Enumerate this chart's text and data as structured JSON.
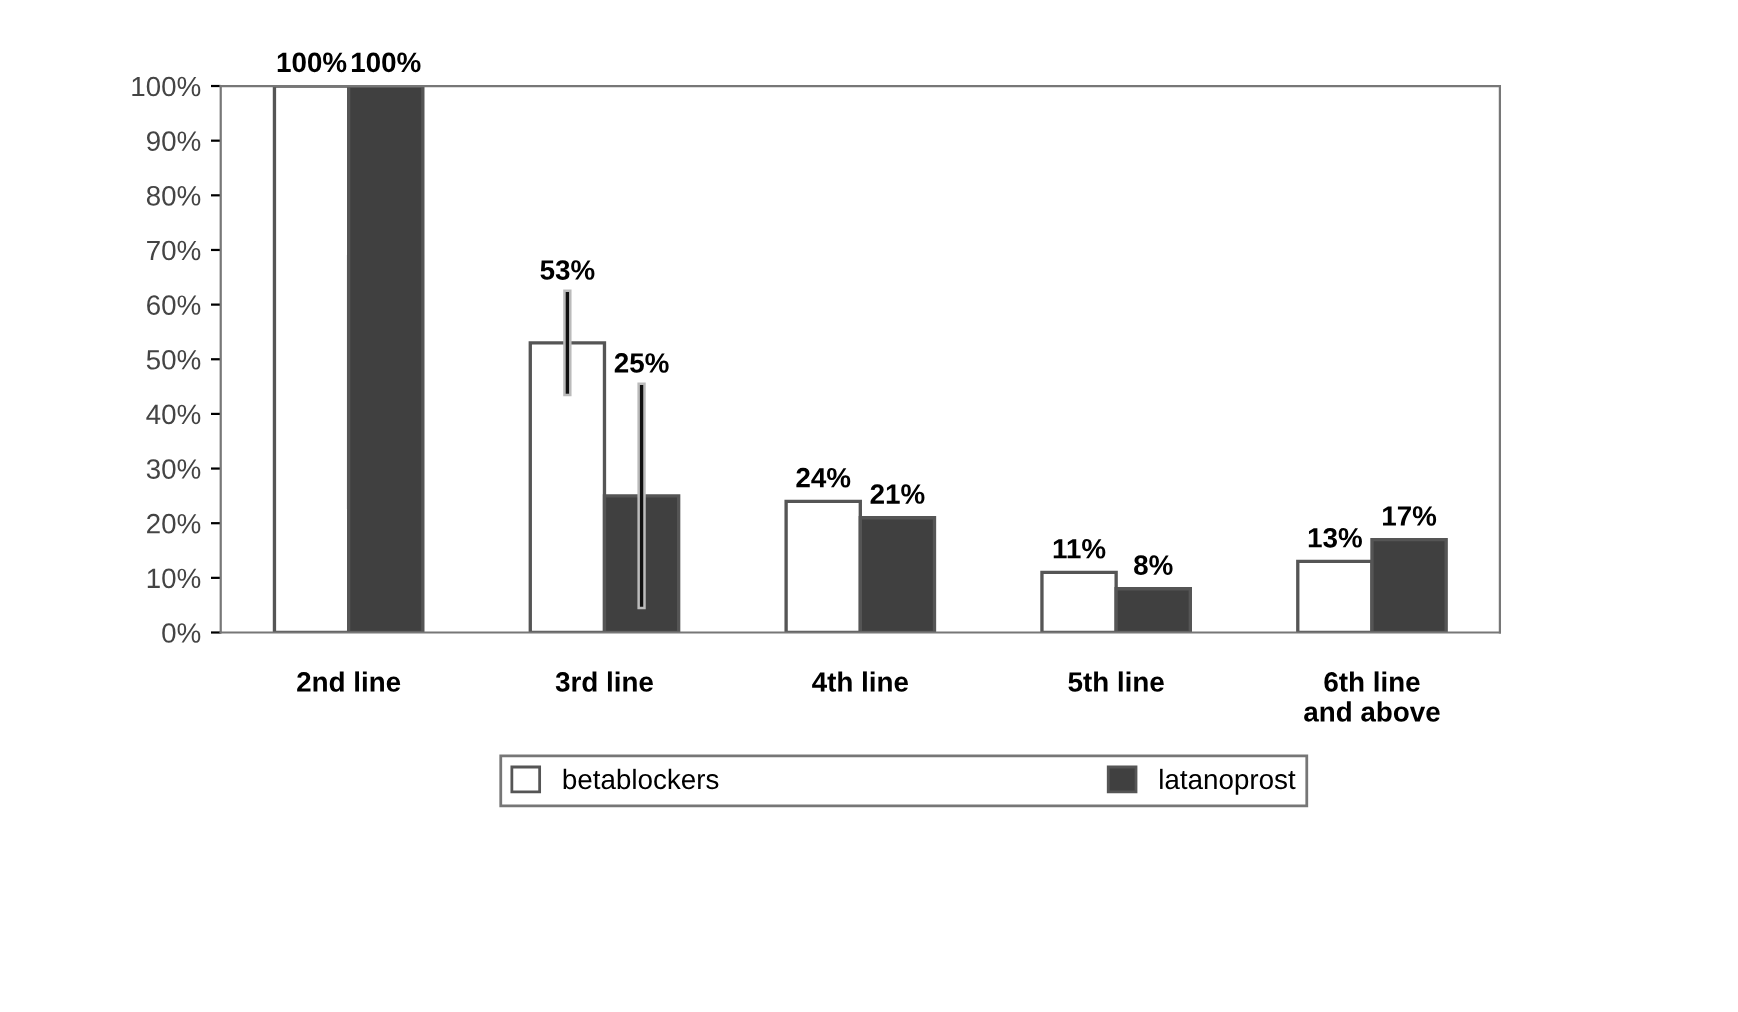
{
  "chart_data": {
    "type": "bar",
    "categories": [
      "2nd line",
      "3rd line",
      "4th line",
      "5th line",
      "6th line\nand above"
    ],
    "series": [
      {
        "name": "betablockers",
        "color": "#ffffff",
        "values": [
          100,
          53,
          24,
          11,
          13
        ],
        "value_labels": [
          "100%",
          "53%",
          "24%",
          "11%",
          "13%"
        ],
        "errors": [
          null,
          [
            44,
            62
          ],
          null,
          null,
          null
        ]
      },
      {
        "name": "latanoprost",
        "color": "#404040",
        "values": [
          100,
          25,
          21,
          8,
          17
        ],
        "value_labels": [
          "100%",
          "25%",
          "21%",
          "8%",
          "17%"
        ],
        "errors": [
          null,
          [
            5,
            45
          ],
          null,
          null,
          null
        ]
      }
    ],
    "ylim": [
      0,
      100
    ],
    "yticks": [
      {
        "value": 0,
        "label": "0%"
      },
      {
        "value": 10,
        "label": "10%"
      },
      {
        "value": 20,
        "label": "20%"
      },
      {
        "value": 30,
        "label": "30%"
      },
      {
        "value": 40,
        "label": "40%"
      },
      {
        "value": 50,
        "label": "50%"
      },
      {
        "value": 60,
        "label": "60%"
      },
      {
        "value": 70,
        "label": "70%"
      },
      {
        "value": 80,
        "label": "80%"
      },
      {
        "value": 90,
        "label": "90%"
      },
      {
        "value": 100,
        "label": "100%"
      }
    ],
    "grid": false,
    "legend": "bottom"
  }
}
